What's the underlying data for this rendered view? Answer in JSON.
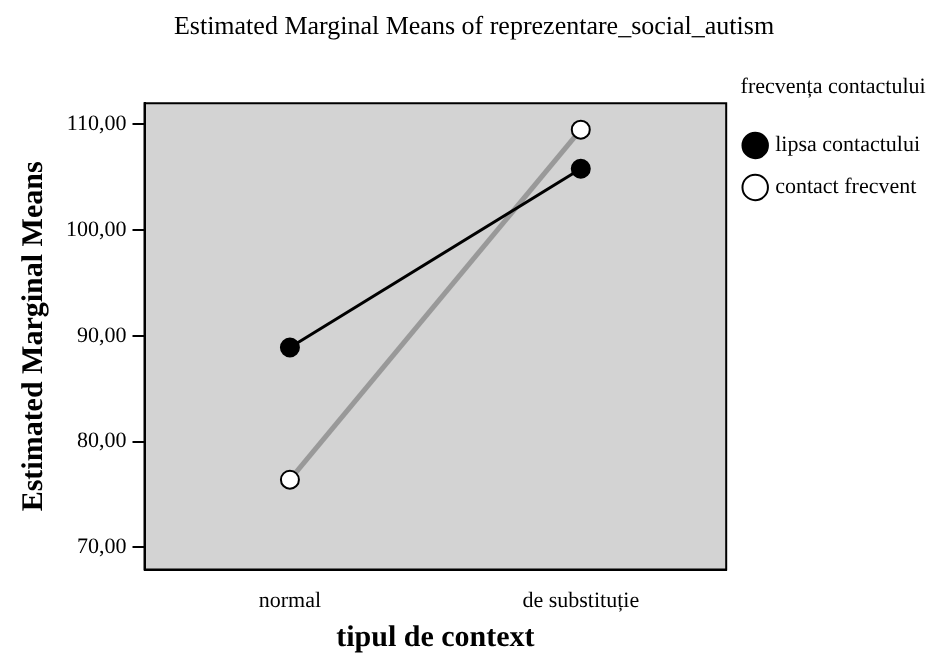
{
  "chart_data": {
    "type": "line",
    "title": "Estimated Marginal Means of reprezentare_social_autism",
    "xlabel": "tipul de context",
    "ylabel": "Estimated Marginal Means",
    "legend_title": "frecvența contactului",
    "categories": [
      "normal",
      "de substituție"
    ],
    "series": [
      {
        "name": "lipsa contactului",
        "color": "#000000",
        "values": [
          88.9,
          105.8
        ]
      },
      {
        "name": "contact frecvent",
        "color": "#999999",
        "values": [
          76.4,
          109.5
        ]
      }
    ],
    "ylim": [
      67.9,
      112
    ],
    "yticks": [
      {
        "value": 70,
        "label": "70,00"
      },
      {
        "value": 80,
        "label": "80,00"
      },
      {
        "value": 90,
        "label": "90,00"
      },
      {
        "value": 100,
        "label": "100,00"
      },
      {
        "value": 110,
        "label": "110,00"
      }
    ],
    "grid": false,
    "legend": "top right",
    "marker": "circle",
    "line_style": "solid"
  }
}
